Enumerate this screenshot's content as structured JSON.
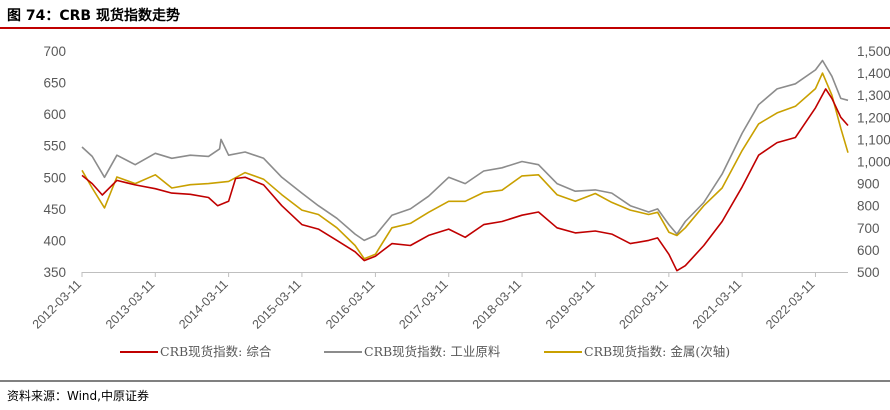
{
  "figure": {
    "title": "图 74：CRB 现货指数走势",
    "source": "资料来源：Wind,中原证券"
  },
  "colors": {
    "title_rule": "#c00000",
    "composite": "#c00000",
    "industrial": "#8c8c8c",
    "metals": "#c9a000",
    "axis_text": "#595959"
  },
  "chart_data": {
    "type": "line",
    "title": "",
    "xlabel": "",
    "ylabel_left": "",
    "ylabel_right": "",
    "x_tick_labels": [
      "2012-03-11",
      "2013-03-11",
      "2014-03-11",
      "2015-03-11",
      "2016-03-11",
      "2017-03-11",
      "2018-03-11",
      "2019-03-11",
      "2020-03-11",
      "2021-03-11",
      "2022-03-11"
    ],
    "x_ticks": [
      "2012-03-11",
      "2013-03-11",
      "2014-03-11",
      "2015-03-11",
      "2016-03-11",
      "2017-03-11",
      "2018-03-11",
      "2019-03-11",
      "2020-03-11",
      "2021-03-11",
      "2022-03-11"
    ],
    "x_range": [
      "2012-03-11",
      "2022-08-20"
    ],
    "ylim_left": [
      350,
      700
    ],
    "yticks_left": [
      "350",
      "400",
      "450",
      "500",
      "550",
      "600",
      "650",
      "700"
    ],
    "ylim_right": [
      500,
      1500
    ],
    "yticks_right": [
      "500",
      "600",
      "700",
      "800",
      "900",
      "1,000",
      "1,100",
      "1,200",
      "1,300",
      "1,400",
      "1,500"
    ],
    "grid": false,
    "legend_position": "bottom",
    "series": [
      {
        "name": "CRB现货指数: 综合",
        "axis": "left",
        "points": [
          [
            "2012-03-11",
            503
          ],
          [
            "2012-05-01",
            490
          ],
          [
            "2012-06-20",
            472
          ],
          [
            "2012-09-01",
            495
          ],
          [
            "2012-12-01",
            488
          ],
          [
            "2013-03-11",
            482
          ],
          [
            "2013-06-01",
            475
          ],
          [
            "2013-09-01",
            473
          ],
          [
            "2013-12-01",
            468
          ],
          [
            "2014-01-15",
            455
          ],
          [
            "2014-03-11",
            462
          ],
          [
            "2014-04-15",
            498
          ],
          [
            "2014-06-01",
            500
          ],
          [
            "2014-09-01",
            488
          ],
          [
            "2014-12-01",
            455
          ],
          [
            "2015-03-11",
            425
          ],
          [
            "2015-06-01",
            418
          ],
          [
            "2015-09-01",
            400
          ],
          [
            "2015-12-01",
            382
          ],
          [
            "2016-01-15",
            368
          ],
          [
            "2016-03-11",
            375
          ],
          [
            "2016-06-01",
            395
          ],
          [
            "2016-09-01",
            392
          ],
          [
            "2016-12-01",
            408
          ],
          [
            "2017-03-11",
            418
          ],
          [
            "2017-06-01",
            405
          ],
          [
            "2017-09-01",
            425
          ],
          [
            "2017-12-01",
            430
          ],
          [
            "2018-03-11",
            440
          ],
          [
            "2018-06-01",
            445
          ],
          [
            "2018-09-01",
            420
          ],
          [
            "2018-12-01",
            412
          ],
          [
            "2019-03-11",
            415
          ],
          [
            "2019-06-01",
            410
          ],
          [
            "2019-09-01",
            395
          ],
          [
            "2019-12-01",
            400
          ],
          [
            "2020-01-15",
            404
          ],
          [
            "2020-03-11",
            378
          ],
          [
            "2020-04-20",
            352
          ],
          [
            "2020-06-01",
            360
          ],
          [
            "2020-09-01",
            392
          ],
          [
            "2020-12-01",
            430
          ],
          [
            "2021-03-11",
            485
          ],
          [
            "2021-06-01",
            535
          ],
          [
            "2021-09-01",
            555
          ],
          [
            "2021-12-01",
            563
          ],
          [
            "2022-03-11",
            610
          ],
          [
            "2022-05-01",
            640
          ],
          [
            "2022-06-01",
            625
          ],
          [
            "2022-07-15",
            595
          ],
          [
            "2022-08-20",
            582
          ]
        ]
      },
      {
        "name": "CRB现货指数: 工业原料",
        "axis": "left",
        "points": [
          [
            "2012-03-11",
            548
          ],
          [
            "2012-05-01",
            533
          ],
          [
            "2012-07-01",
            500
          ],
          [
            "2012-09-01",
            535
          ],
          [
            "2012-12-01",
            520
          ],
          [
            "2013-03-11",
            538
          ],
          [
            "2013-06-01",
            530
          ],
          [
            "2013-09-01",
            535
          ],
          [
            "2013-12-01",
            533
          ],
          [
            "2014-01-25",
            545
          ],
          [
            "2014-02-01",
            560
          ],
          [
            "2014-03-11",
            535
          ],
          [
            "2014-06-01",
            540
          ],
          [
            "2014-09-01",
            530
          ],
          [
            "2014-12-01",
            500
          ],
          [
            "2015-03-11",
            475
          ],
          [
            "2015-06-01",
            455
          ],
          [
            "2015-09-01",
            435
          ],
          [
            "2015-12-01",
            410
          ],
          [
            "2016-01-15",
            400
          ],
          [
            "2016-03-11",
            408
          ],
          [
            "2016-06-01",
            440
          ],
          [
            "2016-09-01",
            450
          ],
          [
            "2016-12-01",
            470
          ],
          [
            "2017-03-11",
            500
          ],
          [
            "2017-06-01",
            490
          ],
          [
            "2017-09-01",
            510
          ],
          [
            "2017-12-01",
            515
          ],
          [
            "2018-03-11",
            525
          ],
          [
            "2018-06-01",
            520
          ],
          [
            "2018-09-01",
            490
          ],
          [
            "2018-12-01",
            478
          ],
          [
            "2019-03-11",
            480
          ],
          [
            "2019-06-01",
            475
          ],
          [
            "2019-09-01",
            455
          ],
          [
            "2019-12-01",
            445
          ],
          [
            "2020-01-15",
            450
          ],
          [
            "2020-03-11",
            425
          ],
          [
            "2020-04-20",
            410
          ],
          [
            "2020-06-01",
            430
          ],
          [
            "2020-09-01",
            460
          ],
          [
            "2020-12-01",
            505
          ],
          [
            "2021-03-11",
            570
          ],
          [
            "2021-06-01",
            615
          ],
          [
            "2021-09-01",
            640
          ],
          [
            "2021-12-01",
            648
          ],
          [
            "2022-03-11",
            670
          ],
          [
            "2022-04-15",
            685
          ],
          [
            "2022-06-01",
            660
          ],
          [
            "2022-07-15",
            625
          ],
          [
            "2022-08-20",
            622
          ]
        ]
      },
      {
        "name": "CRB现货指数: 金属(次轴)",
        "axis": "right",
        "points": [
          [
            "2012-03-11",
            960
          ],
          [
            "2012-05-01",
            880
          ],
          [
            "2012-07-01",
            790
          ],
          [
            "2012-09-01",
            930
          ],
          [
            "2012-12-01",
            900
          ],
          [
            "2013-03-11",
            940
          ],
          [
            "2013-06-01",
            880
          ],
          [
            "2013-09-01",
            895
          ],
          [
            "2013-12-01",
            900
          ],
          [
            "2014-03-11",
            910
          ],
          [
            "2014-06-01",
            950
          ],
          [
            "2014-09-01",
            920
          ],
          [
            "2014-12-01",
            850
          ],
          [
            "2015-03-11",
            780
          ],
          [
            "2015-06-01",
            760
          ],
          [
            "2015-09-01",
            700
          ],
          [
            "2015-12-01",
            620
          ],
          [
            "2016-01-15",
            560
          ],
          [
            "2016-03-11",
            580
          ],
          [
            "2016-06-01",
            700
          ],
          [
            "2016-09-01",
            720
          ],
          [
            "2016-12-01",
            770
          ],
          [
            "2017-03-11",
            820
          ],
          [
            "2017-06-01",
            820
          ],
          [
            "2017-09-01",
            860
          ],
          [
            "2017-12-01",
            870
          ],
          [
            "2018-03-11",
            935
          ],
          [
            "2018-06-01",
            940
          ],
          [
            "2018-09-01",
            850
          ],
          [
            "2018-12-01",
            820
          ],
          [
            "2019-03-11",
            855
          ],
          [
            "2019-06-01",
            815
          ],
          [
            "2019-09-01",
            780
          ],
          [
            "2019-12-01",
            760
          ],
          [
            "2020-01-15",
            770
          ],
          [
            "2020-03-11",
            680
          ],
          [
            "2020-04-20",
            665
          ],
          [
            "2020-06-01",
            700
          ],
          [
            "2020-09-01",
            800
          ],
          [
            "2020-12-01",
            880
          ],
          [
            "2021-03-11",
            1050
          ],
          [
            "2021-06-01",
            1170
          ],
          [
            "2021-09-01",
            1220
          ],
          [
            "2021-12-01",
            1250
          ],
          [
            "2022-03-11",
            1330
          ],
          [
            "2022-04-15",
            1400
          ],
          [
            "2022-06-01",
            1300
          ],
          [
            "2022-07-15",
            1150
          ],
          [
            "2022-08-20",
            1040
          ]
        ]
      }
    ]
  }
}
